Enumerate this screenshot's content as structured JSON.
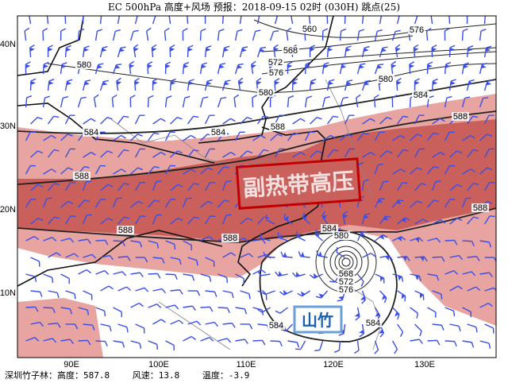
{
  "title": "EC 500hPa 高度+风场  预报：2018-09-15 02时 (030H) 跳点(25)",
  "axes": {
    "lon_ticks": [
      "90E",
      "100E",
      "110E",
      "120E",
      "130E"
    ],
    "lat_ticks": [
      "40N",
      "30N",
      "20N",
      "10N"
    ]
  },
  "annotations": {
    "subtropical_high": "副热带高压",
    "typhoon": "山竹"
  },
  "contour_labels": [
    "560",
    "576",
    "568",
    "572",
    "576",
    "580",
    "580",
    "580",
    "584",
    "584",
    "584",
    "588",
    "588",
    "588",
    "588",
    "588",
    "588",
    "584",
    "580",
    "568",
    "572",
    "576",
    "584",
    "584"
  ],
  "footer": {
    "station": "深圳竹子林：高度：587.8",
    "wind": "风速：13.8",
    "temp": "温度：-3.9"
  },
  "colors": {
    "shade_584": "#e8a4a0",
    "shade_588": "#c9605c",
    "wind_barb": "#3a4fe8",
    "subtropical_label": "#c00000",
    "typhoon_label": "#1a5fb0"
  }
}
